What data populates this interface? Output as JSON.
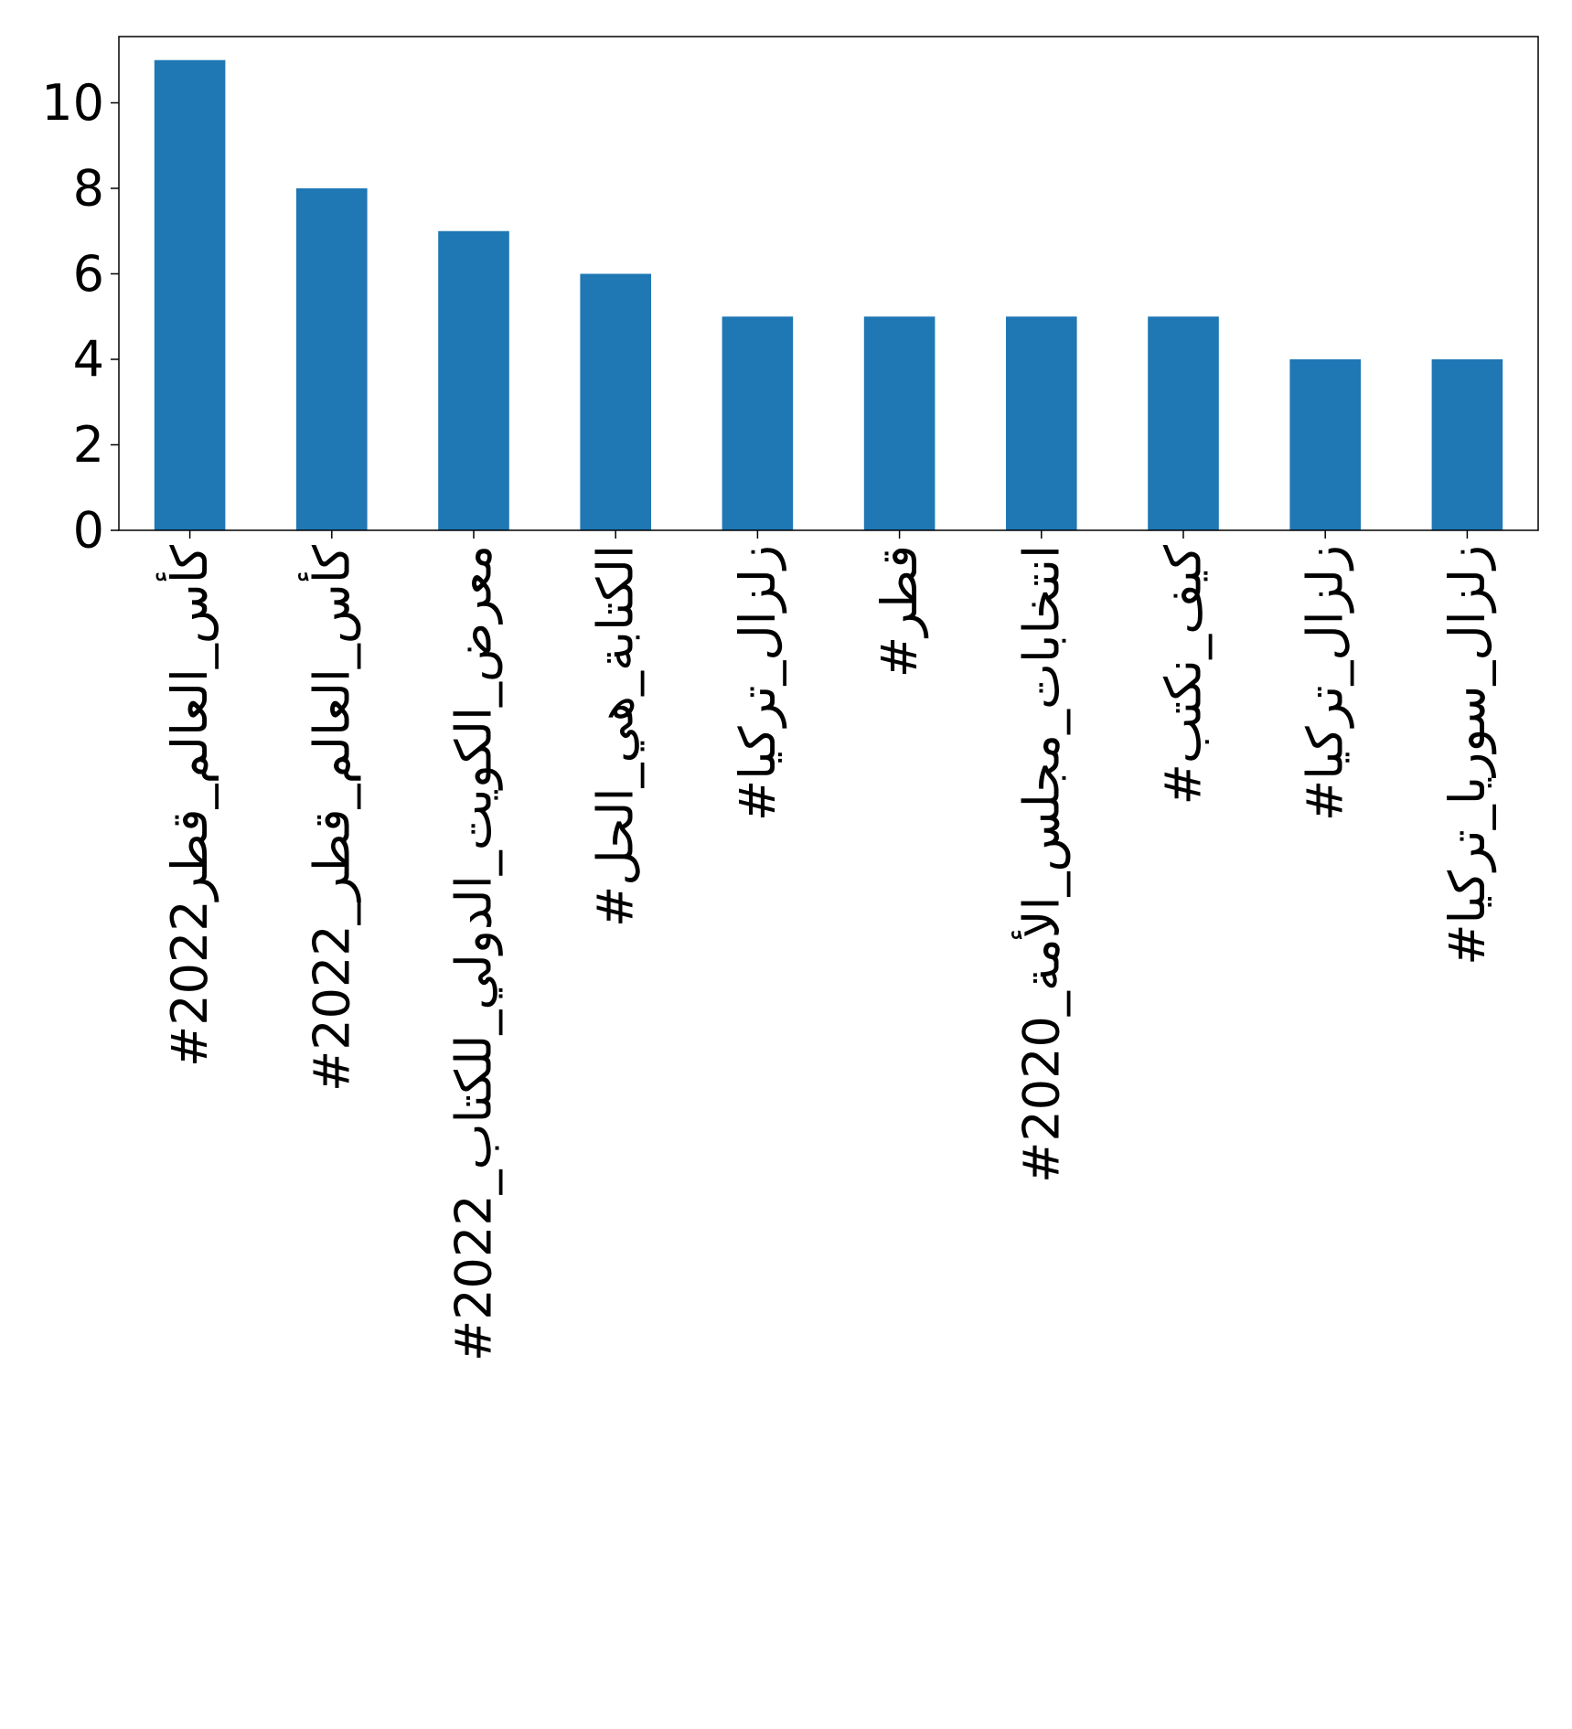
{
  "chart_data": {
    "type": "bar",
    "title": "",
    "xlabel": "",
    "ylabel": "",
    "categories": [
      "#كأس_العالم_قطر2022",
      "#كأس_العالم_قطر_2022",
      "#معرض_الكويت_الدولي_للكتاب_2022",
      "#الكتابة_هي_الحل",
      "#زلزال_تركيا",
      "#قطر",
      "#انتخابات_مجلس_الأمة_2020",
      "#كيف_نكتب",
      "#زلزال_تركيا",
      "#زلزال_سوريا_تركيا"
    ],
    "values": [
      11,
      8,
      7,
      6,
      5,
      5,
      5,
      5,
      4,
      4
    ],
    "ylim": [
      0,
      11.55
    ],
    "yticks": [
      0,
      2,
      4,
      6,
      8,
      10
    ],
    "bar_color": "#1f77b4",
    "grid": false,
    "legend": "none"
  }
}
